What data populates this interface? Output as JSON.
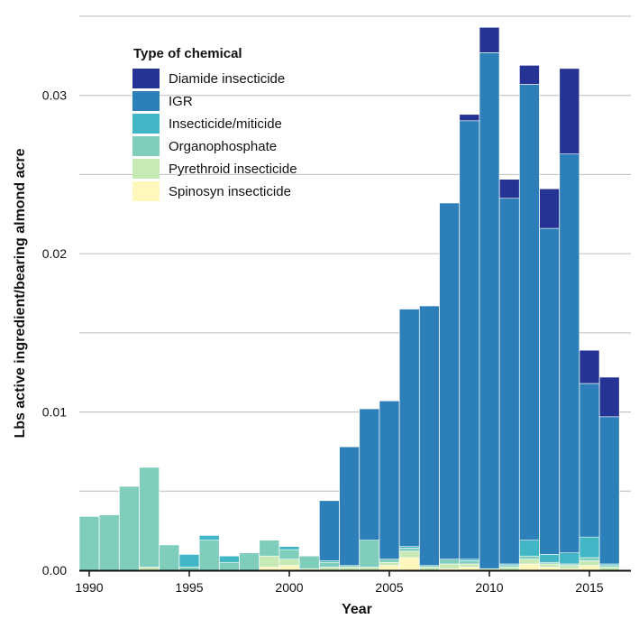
{
  "chart_data": {
    "type": "bar",
    "stacked": true,
    "xlabel": "Year",
    "ylabel": "Lbs active ingredient/bearing almond acre",
    "ylim": [
      0,
      0.035
    ],
    "yticks": [
      "0.00",
      "0.01",
      "0.02",
      "0.03"
    ],
    "ytick_values": [
      0,
      0.01,
      0.02,
      0.03
    ],
    "xticks": [
      "1990",
      "1995",
      "2000",
      "2005",
      "2010",
      "2015"
    ],
    "xtick_values": [
      1990,
      1995,
      2000,
      2005,
      2010,
      2015
    ],
    "grid": "horizontal",
    "legend": {
      "title": "Type of chemical",
      "position": "top-left"
    },
    "years": [
      1990,
      1991,
      1992,
      1993,
      1994,
      1995,
      1996,
      1997,
      1998,
      1999,
      2000,
      2001,
      2002,
      2003,
      2004,
      2005,
      2006,
      2007,
      2008,
      2009,
      2010,
      2011,
      2012,
      2013,
      2014,
      2015,
      2016
    ],
    "series": [
      {
        "name": "Spinosyn insecticide",
        "color": "#fff7bc",
        "values": [
          0,
          0,
          0,
          0,
          0,
          0,
          0,
          0,
          0,
          0.0002,
          0.0003,
          0,
          0,
          0,
          0,
          0.0003,
          0.0008,
          0,
          0.0001,
          0.0002,
          0,
          0,
          0.0004,
          0.0002,
          0.0001,
          0.0003,
          0
        ]
      },
      {
        "name": "Pyrethroid insecticide",
        "color": "#c7e9b4",
        "values": [
          0,
          0,
          0,
          0.0002,
          0,
          0,
          0,
          0,
          0,
          0.0007,
          0.0004,
          0.0001,
          0.0002,
          0.0002,
          0.0002,
          0.0002,
          0.0004,
          0.0002,
          0.0003,
          0.0002,
          0.0001,
          0.0002,
          0.0003,
          0.0002,
          0.0002,
          0.0003,
          0.0002
        ]
      },
      {
        "name": "Organophosphate",
        "color": "#7fcdbb",
        "values": [
          0.0034,
          0.0035,
          0.0053,
          0.0063,
          0.0016,
          0.0002,
          0.0019,
          0.0005,
          0.0011,
          0.001,
          0.0006,
          0.0008,
          0.0003,
          0.0001,
          0.0017,
          0.0002,
          0.0002,
          0.0001,
          0.0003,
          0.0002,
          0,
          0.0001,
          0.0002,
          0.0001,
          0.0001,
          0.0002,
          0.0001
        ]
      },
      {
        "name": "Insecticide/miticide",
        "color": "#41b6c4",
        "values": [
          0,
          0,
          0,
          0,
          0,
          0.0008,
          0.0003,
          0.0004,
          0,
          0,
          0.0002,
          0,
          0.0001,
          0,
          0,
          0,
          0.0001,
          0,
          0,
          0.0001,
          0,
          0.0001,
          0.001,
          0.0005,
          0.0007,
          0.0013,
          0.0001
        ]
      },
      {
        "name": "IGR",
        "color": "#2c7fb8",
        "values": [
          0,
          0,
          0,
          0,
          0,
          0,
          0,
          0,
          0,
          0,
          0,
          0,
          0.0038,
          0.0075,
          0.0083,
          0.01,
          0.015,
          0.0164,
          0.0225,
          0.0277,
          0.0326,
          0.0231,
          0.0288,
          0.0206,
          0.0252,
          0.0097,
          0.0093
        ]
      },
      {
        "name": "Diamide insecticide",
        "color": "#253494",
        "values": [
          0,
          0,
          0,
          0,
          0,
          0,
          0,
          0,
          0,
          0,
          0,
          0,
          0,
          0,
          0,
          0,
          0,
          0,
          0,
          0.0004,
          0.0016,
          0.0012,
          0.0012,
          0.0025,
          0.0054,
          0.0021,
          0.0025
        ]
      }
    ]
  },
  "legend_order": [
    "Diamide insecticide",
    "IGR",
    "Insecticide/miticide",
    "Organophosphate",
    "Pyrethroid insecticide",
    "Spinosyn insecticide"
  ]
}
